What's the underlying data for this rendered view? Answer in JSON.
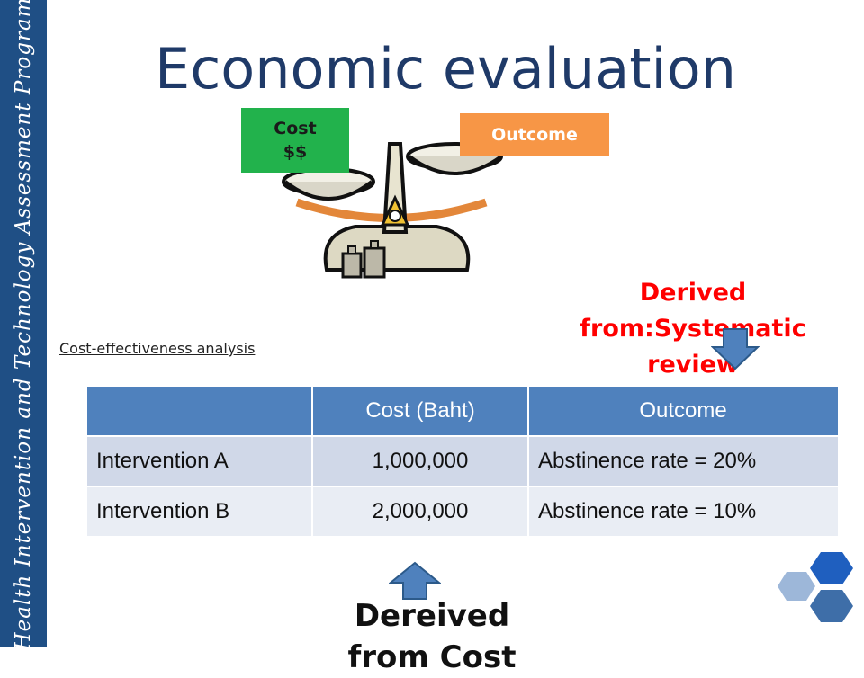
{
  "side_banner": {
    "text": "Health Intervention and Technology Assessment Program"
  },
  "title": "Economic evaluation",
  "scale": {
    "cost_label_line1": "Cost",
    "cost_label_line2": "$$",
    "outcome_label": "Outcome"
  },
  "analysis_label": "Cost-effectiveness analysis",
  "derived_systematic": {
    "line1": "Derived",
    "line2": "from:Systematic",
    "line3": "review"
  },
  "table": {
    "headers": [
      "",
      "Cost (Baht)",
      "Outcome"
    ],
    "rows": [
      [
        "Intervention A",
        "1,000,000",
        "Abstinence rate = 20%"
      ],
      [
        "Intervention B",
        "2,000,000",
        "Abstinence rate = 10%"
      ]
    ]
  },
  "dereived_label": "Dereived",
  "dereived_label_cut": "from Cost",
  "colors": {
    "banner": "#1f4f85",
    "title": "#1f3a68",
    "cost_box": "#22b24c",
    "outcome_box": "#f79646",
    "table_header": "#4f81bd",
    "derived_text": "#ff0000"
  }
}
